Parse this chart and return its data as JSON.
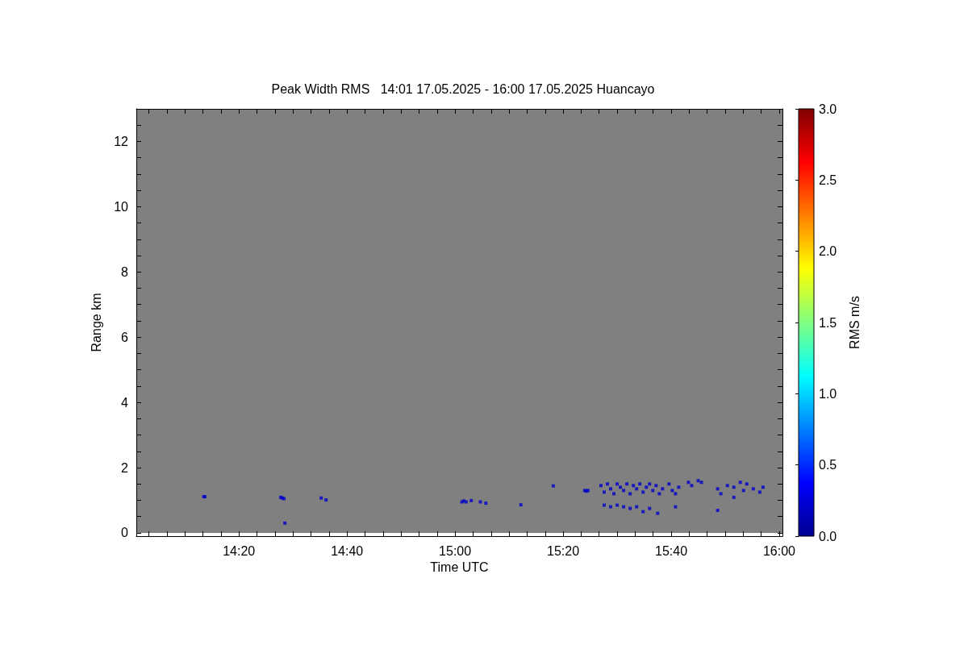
{
  "chart_data": {
    "type": "scatter",
    "title": "Peak Width RMS   14:01 17.05.2025 - 16:00 17.05.2025 Huancayo",
    "xlabel": "Time UTC",
    "ylabel": "Range km",
    "clabel": "RMS m/s",
    "marker": "square",
    "x": [
      14.225,
      14.228,
      14.462,
      14.467,
      14.472,
      14.475,
      14.587,
      14.602,
      15.021,
      15.027,
      15.034,
      15.05,
      15.078,
      15.095,
      15.203,
      15.303,
      15.4,
      15.405,
      15.41,
      15.45,
      15.46,
      15.47,
      15.48,
      15.49,
      15.5,
      15.51,
      15.52,
      15.53,
      15.54,
      15.55,
      15.56,
      15.57,
      15.58,
      15.59,
      15.6,
      15.61,
      15.62,
      15.63,
      15.64,
      15.46,
      15.48,
      15.5,
      15.52,
      15.54,
      15.56,
      15.58,
      15.6,
      15.625,
      15.68,
      15.66,
      15.67,
      15.68,
      15.69,
      15.72,
      15.73,
      15.75,
      15.76,
      15.81,
      15.82,
      15.84,
      15.86,
      15.88,
      15.89,
      15.9,
      15.92,
      15.94,
      15.95,
      15.81,
      15.86
    ],
    "values": [
      1.11,
      1.11,
      1.09,
      1.07,
      1.05,
      0.3,
      1.07,
      1.01,
      0.95,
      0.98,
      0.95,
      0.99,
      0.95,
      0.91,
      0.86,
      1.44,
      1.3,
      1.28,
      1.3,
      1.45,
      1.25,
      1.5,
      1.35,
      1.2,
      1.5,
      1.4,
      1.3,
      1.5,
      1.2,
      1.45,
      1.35,
      1.5,
      1.25,
      1.4,
      1.5,
      1.3,
      1.45,
      1.2,
      1.35,
      0.85,
      0.8,
      0.85,
      0.8,
      0.75,
      0.8,
      0.65,
      0.75,
      0.6,
      0.8,
      1.5,
      1.3,
      1.2,
      1.4,
      1.55,
      1.45,
      1.6,
      1.55,
      1.35,
      1.2,
      1.45,
      1.4,
      1.55,
      1.3,
      1.5,
      1.35,
      1.25,
      1.4,
      0.69,
      1.09
    ],
    "cvalues": [
      0.2,
      0.2,
      0.2,
      0.2,
      0.2,
      0.2,
      0.2,
      0.2,
      0.2,
      0.2,
      0.2,
      0.2,
      0.2,
      0.2,
      0.2,
      0.2,
      0.2,
      0.2,
      0.2,
      0.2,
      0.2,
      0.2,
      0.2,
      0.2,
      0.2,
      0.2,
      0.2,
      0.2,
      0.2,
      0.2,
      0.2,
      0.2,
      0.2,
      0.2,
      0.2,
      0.2,
      0.2,
      0.2,
      0.2,
      0.2,
      0.2,
      0.2,
      0.2,
      0.2,
      0.2,
      0.2,
      0.2,
      0.2,
      0.2,
      0.2,
      0.2,
      0.2,
      0.2,
      0.2,
      0.2,
      0.2,
      0.2,
      0.2,
      0.2,
      0.2,
      0.2,
      0.2,
      0.2,
      0.2,
      0.2,
      0.2,
      0.2,
      0.2,
      0.2
    ],
    "xlim": [
      14.0167,
      16.01
    ],
    "xticks": [
      {
        "value": 14.0556,
        "label": null
      },
      {
        "value": 14.1111,
        "label": null
      },
      {
        "value": 14.1667,
        "label": null
      },
      {
        "value": 14.2222,
        "label": null
      },
      {
        "value": 14.2778,
        "label": null
      },
      {
        "value": 14.3333,
        "label": "14:20"
      },
      {
        "value": 14.3889,
        "label": null
      },
      {
        "value": 14.4444,
        "label": null
      },
      {
        "value": 14.5,
        "label": null
      },
      {
        "value": 14.5556,
        "label": null
      },
      {
        "value": 14.6111,
        "label": null
      },
      {
        "value": 14.6667,
        "label": "14:40"
      },
      {
        "value": 14.7222,
        "label": null
      },
      {
        "value": 14.7778,
        "label": null
      },
      {
        "value": 14.8333,
        "label": null
      },
      {
        "value": 14.8889,
        "label": null
      },
      {
        "value": 14.9444,
        "label": null
      },
      {
        "value": 15,
        "label": "15:00"
      },
      {
        "value": 15.0556,
        "label": null
      },
      {
        "value": 15.1111,
        "label": null
      },
      {
        "value": 15.1667,
        "label": null
      },
      {
        "value": 15.2222,
        "label": null
      },
      {
        "value": 15.2778,
        "label": null
      },
      {
        "value": 15.3333,
        "label": "15:20"
      },
      {
        "value": 15.3889,
        "label": null
      },
      {
        "value": 15.4444,
        "label": null
      },
      {
        "value": 15.5,
        "label": null
      },
      {
        "value": 15.5556,
        "label": null
      },
      {
        "value": 15.6111,
        "label": null
      },
      {
        "value": 15.6667,
        "label": "15:40"
      },
      {
        "value": 15.7222,
        "label": null
      },
      {
        "value": 15.7778,
        "label": null
      },
      {
        "value": 15.8333,
        "label": null
      },
      {
        "value": 15.8889,
        "label": null
      },
      {
        "value": 15.9444,
        "label": null
      },
      {
        "value": 16,
        "label": "16:00"
      }
    ],
    "ylim": [
      -0.1,
      13
    ],
    "yticks": [
      0,
      {
        "value": 0.5,
        "label": null
      },
      {
        "value": 1,
        "label": null
      },
      {
        "value": 1.5,
        "label": null
      },
      2,
      {
        "value": 2.5,
        "label": null
      },
      {
        "value": 3,
        "label": null
      },
      {
        "value": 3.5,
        "label": null
      },
      4,
      {
        "value": 4.5,
        "label": null
      },
      {
        "value": 5,
        "label": null
      },
      {
        "value": 5.5,
        "label": null
      },
      6,
      {
        "value": 6.5,
        "label": null
      },
      {
        "value": 7,
        "label": null
      },
      {
        "value": 7.5,
        "label": null
      },
      8,
      {
        "value": 8.5,
        "label": null
      },
      {
        "value": 9,
        "label": null
      },
      {
        "value": 9.5,
        "label": null
      },
      10,
      {
        "value": 10.5,
        "label": null
      },
      {
        "value": 11,
        "label": null
      },
      {
        "value": 11.5,
        "label": null
      },
      12,
      {
        "value": 12.5,
        "label": null
      }
    ],
    "clim": [
      0,
      3
    ],
    "cticks": [
      {
        "value": 0,
        "label": "0.0"
      },
      {
        "value": 0.5,
        "label": "0.5"
      },
      {
        "value": 1,
        "label": "1.0"
      },
      {
        "value": 1.5,
        "label": "1.5"
      },
      {
        "value": 2,
        "label": "2.0"
      },
      {
        "value": 2.5,
        "label": "2.5"
      },
      {
        "value": 3,
        "label": "3.0"
      }
    ],
    "bands": [
      {
        "axis": "y",
        "from": 0,
        "to": 13,
        "color": "#808080"
      }
    ],
    "grid": false
  }
}
